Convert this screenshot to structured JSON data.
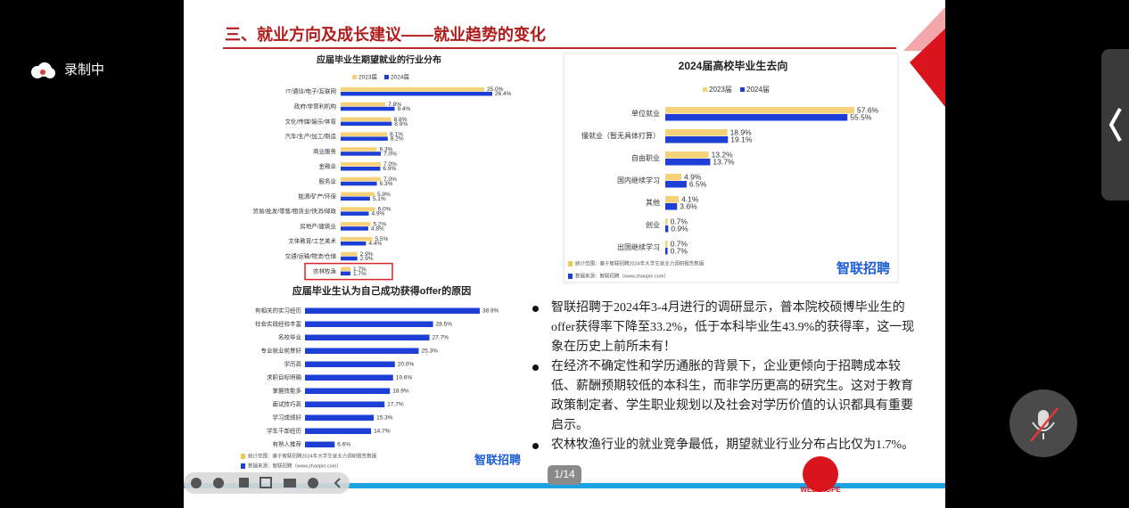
{
  "recorder": {
    "status": "录制中"
  },
  "slide": {
    "title": "三、就业方向及成长建议——就业趋势的变化",
    "bullets": [
      "智联招聘于2024年3-4月进行的调研显示，普本院校硕博毕业生的offer获得率下降至33.2%，低于本科毕业生43.9%的获得率，这一现象在历史上前所未有！",
      "在经济不确定性和学历通胀的背景下，企业更倾向于招聘成本较低、薪酬预期较低的本科生，而非学历更高的研究生。这对于教育政策制定者、学生职业规划以及社会对学历价值的认识都具有重要启示。",
      "农林牧渔行业的就业竞争最低，期望就业行业分布占比仅为1.7%。"
    ],
    "page": "1/14",
    "logo": "WELLHOPE"
  },
  "chart_data": [
    {
      "type": "bar",
      "orientation": "horizontal",
      "title": "应届毕业生期望就业的行业分布",
      "categories": [
        "IT/通信/电子/互联网",
        "政府/非营利机构",
        "文化/传媒/娱乐/体育",
        "汽车/生产/加工/制造",
        "商业服务",
        "金融业",
        "服务业",
        "能源/矿产/环保",
        "贸易/批发/零售/租赁业/快消/邮政",
        "房地产/建筑业",
        "文体教育/工艺美术",
        "交通/运输/物流/仓储",
        "农林牧渔"
      ],
      "series": [
        {
          "name": "2023届",
          "color": "#f5d27a",
          "values": [
            25.0,
            7.8,
            8.8,
            8.1,
            6.3,
            7.0,
            7.0,
            5.9,
            6.0,
            5.2,
            5.5,
            2.9,
            1.7
          ],
          "value_labels": [
            "25.0%",
            "7.8%",
            "8.8%",
            "8.1%",
            "6.3%",
            "7.0%",
            "7.0%",
            "5.9%",
            "6.0%",
            "5.2%",
            "5.5%",
            "2.9%",
            "1.7%"
          ]
        },
        {
          "name": "2024届",
          "color": "#1d3fd6",
          "values": [
            26.4,
            9.4,
            8.9,
            8.2,
            7.0,
            6.9,
            6.3,
            5.1,
            4.9,
            4.8,
            4.4,
            2.9,
            1.7
          ],
          "value_labels": [
            "26.4%",
            "9.4%",
            "8.9%",
            "8.2%",
            "7.0%",
            "6.9%",
            "6.3%",
            "5.1%",
            "4.9%",
            "4.8%",
            "4.4%",
            "2.9%",
            "1.7%"
          ]
        }
      ],
      "legend": "top",
      "highlight": 12
    },
    {
      "type": "bar",
      "orientation": "horizontal",
      "title": "2024届高校毕业生去向",
      "categories": [
        "单位就业",
        "慢就业（暂无具体打算）",
        "自由职业",
        "国内继续学习",
        "其他",
        "创业",
        "出国继续学习"
      ],
      "series": [
        {
          "name": "2023届",
          "color": "#f5d27a",
          "values": [
            57.6,
            18.9,
            13.2,
            4.9,
            4.1,
            0.7,
            0.7
          ],
          "value_labels": [
            "57.6%",
            "18.9%",
            "13.2%",
            "4.9%",
            "4.1%",
            "0.7%",
            "0.7%"
          ]
        },
        {
          "name": "2024届",
          "color": "#1d3fd6",
          "values": [
            55.5,
            19.1,
            13.7,
            6.5,
            3.6,
            0.9,
            0.7
          ],
          "value_labels": [
            "55.5%",
            "19.1%",
            "13.7%",
            "6.5%",
            "3.6%",
            "0.9%",
            "0.7%"
          ]
        }
      ],
      "legend": "top",
      "notes": [
        "统计范围：基于智联招聘2024年大学生就业力调研报告数据",
        "数据来源：智联招聘（www.zhaopin.com）"
      ],
      "logo": "智联招聘"
    },
    {
      "type": "bar",
      "orientation": "horizontal",
      "title": "应届毕业生认为自己成功获得offer的原因",
      "categories": [
        "有相关的实习经历",
        "社会实践经验丰富",
        "名校毕业",
        "专业就业前景好",
        "学历高",
        "求职目标明确",
        "掌握技能多",
        "面试技巧高",
        "学习成绩好",
        "学生干部经历",
        "有熟人推荐"
      ],
      "values": [
        38.9,
        28.5,
        27.7,
        25.3,
        20.0,
        19.6,
        18.9,
        17.7,
        15.3,
        14.7,
        6.6
      ],
      "value_labels": [
        "38.9%",
        "28.5%",
        "27.7%",
        "25.3%",
        "20.0%",
        "19.6%",
        "18.9%",
        "17.7%",
        "15.3%",
        "14.7%",
        "6.6%"
      ],
      "color": "#1d3fd6",
      "notes": [
        "统计范围：基于智联招聘2024年大学生就业力调研报告数据",
        "数据来源：智联招聘（www.zhaopin.com）"
      ],
      "logo": "智联招聘"
    }
  ]
}
